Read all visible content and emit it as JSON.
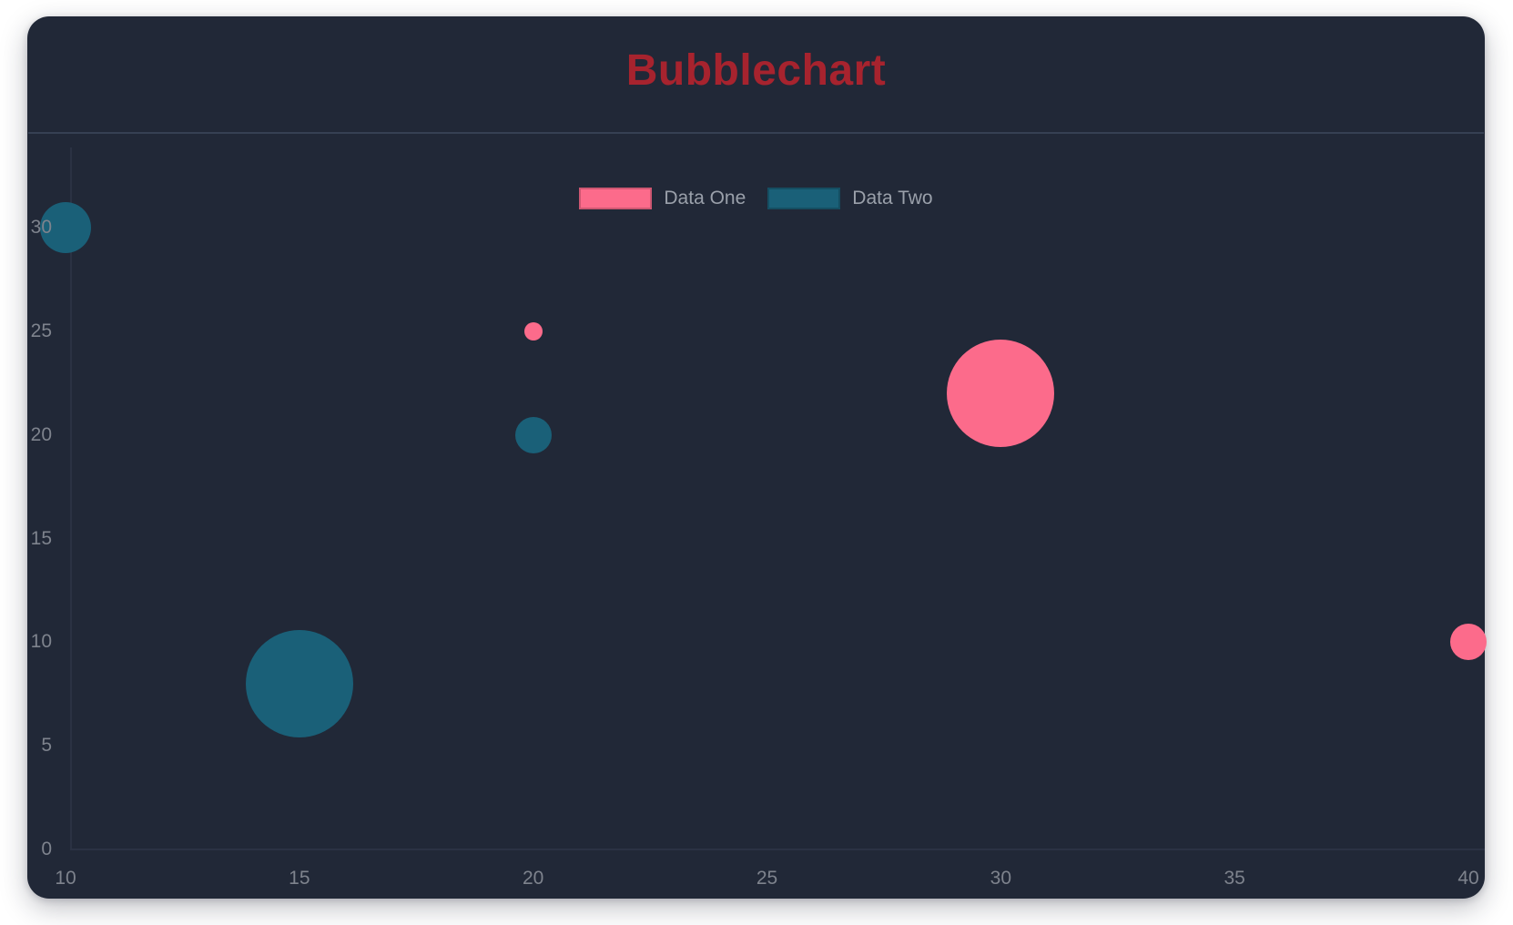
{
  "page": {
    "background": "#ffffff"
  },
  "card": {
    "background": "#212837",
    "separator_color": "#3a4458"
  },
  "chart_data": {
    "type": "bubble",
    "title": "Bubblechart",
    "title_color": "#a7232e",
    "legend_position": "top",
    "grid": false,
    "axis_line_color": "#2b3243",
    "tick_label_color": "#7e838d",
    "legend_label_color": "#9aa0aa",
    "xlim": [
      10,
      40
    ],
    "ylim": [
      0,
      30
    ],
    "x_ticks": [
      "10",
      "15",
      "20",
      "25",
      "30",
      "35",
      "40"
    ],
    "y_ticks": [
      "0",
      "5",
      "10",
      "15",
      "20",
      "25",
      "30"
    ],
    "series": [
      {
        "name": "Data One",
        "color": "#fc6b8b",
        "points": [
          {
            "x": 20,
            "y": 25,
            "r": 10
          },
          {
            "x": 30,
            "y": 22,
            "r": 59
          },
          {
            "x": 40,
            "y": 10,
            "r": 20
          }
        ]
      },
      {
        "name": "Data Two",
        "color": "#1a6078",
        "points": [
          {
            "x": 10,
            "y": 30,
            "r": 28
          },
          {
            "x": 15,
            "y": 8,
            "r": 59
          },
          {
            "x": 20,
            "y": 20,
            "r": 20
          }
        ]
      }
    ]
  }
}
